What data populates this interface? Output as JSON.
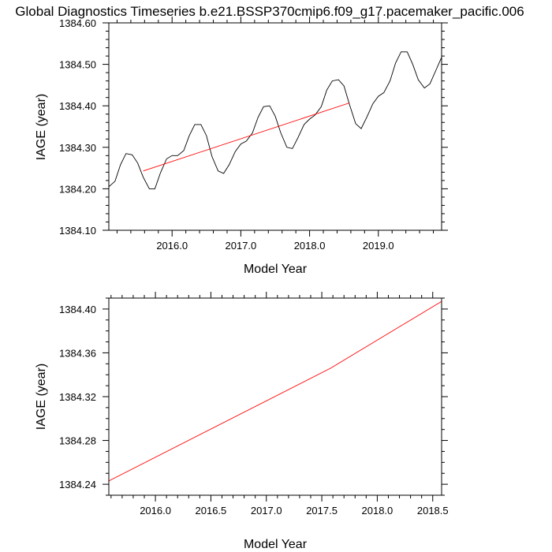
{
  "title": "Global Diagnostics Timeseries b.e21.BSSP370cmip6.f09_g17.pacemaker_pacific.006",
  "colors": {
    "data_line": "#000000",
    "trend_line": "#ff0000",
    "axes": "#000000"
  },
  "chart_data": [
    {
      "type": "line",
      "xlabel": "Model Year",
      "ylabel": "IAGE (year)",
      "xlim": [
        2015.08,
        2019.92
      ],
      "ylim": [
        1384.1,
        1384.6
      ],
      "x_ticks": [
        2016.0,
        2017.0,
        2018.0,
        2019.0
      ],
      "x_tick_labels": [
        "2016.0",
        "2017.0",
        "2018.0",
        "2019.0"
      ],
      "y_ticks": [
        1384.1,
        1384.2,
        1384.3,
        1384.4,
        1384.5,
        1384.6
      ],
      "y_tick_labels": [
        "1384.10",
        "1384.20",
        "1384.30",
        "1384.40",
        "1384.50",
        "1384.60"
      ],
      "series": [
        {
          "color": "#000000",
          "x": [
            2015.08,
            2015.17,
            2015.25,
            2015.33,
            2015.42,
            2015.5,
            2015.58,
            2015.67,
            2015.75,
            2015.83,
            2015.92,
            2016.0,
            2016.08,
            2016.17,
            2016.25,
            2016.33,
            2016.42,
            2016.5,
            2016.58,
            2016.67,
            2016.75,
            2016.83,
            2016.92,
            2017.0,
            2017.08,
            2017.17,
            2017.25,
            2017.33,
            2017.42,
            2017.5,
            2017.58,
            2017.67,
            2017.75,
            2017.83,
            2017.92,
            2018.0,
            2018.08,
            2018.17,
            2018.25,
            2018.33,
            2018.42,
            2018.5,
            2018.58,
            2018.67,
            2018.75,
            2018.83,
            2018.92,
            2019.0,
            2019.08,
            2019.17,
            2019.25,
            2019.33,
            2019.42,
            2019.5,
            2019.58,
            2019.67,
            2019.75,
            2019.83,
            2019.92
          ],
          "y": [
            1384.205,
            1384.218,
            1384.258,
            1384.285,
            1384.282,
            1384.262,
            1384.228,
            1384.2,
            1384.2,
            1384.238,
            1384.272,
            1384.28,
            1384.28,
            1384.292,
            1384.328,
            1384.355,
            1384.355,
            1384.328,
            1384.278,
            1384.243,
            1384.237,
            1384.258,
            1384.29,
            1384.308,
            1384.315,
            1384.335,
            1384.372,
            1384.398,
            1384.4,
            1384.375,
            1384.335,
            1384.3,
            1384.297,
            1384.323,
            1384.355,
            1384.368,
            1384.378,
            1384.398,
            1384.438,
            1384.46,
            1384.463,
            1384.448,
            1384.403,
            1384.357,
            1384.345,
            1384.372,
            1384.405,
            1384.423,
            1384.432,
            1384.46,
            1384.503,
            1384.53,
            1384.53,
            1384.5,
            1384.463,
            1384.443,
            1384.453,
            1384.483,
            1384.517
          ]
        },
        {
          "color": "#ff0000",
          "x": [
            2015.58,
            2018.58
          ],
          "y": [
            1384.243,
            1384.407
          ]
        }
      ]
    },
    {
      "type": "line",
      "xlabel": "Model Year",
      "ylabel": "IAGE (year)",
      "xlim": [
        2015.58,
        2018.58
      ],
      "ylim": [
        1384.23,
        1384.41
      ],
      "x_ticks": [
        2016.0,
        2016.5,
        2017.0,
        2017.5,
        2018.0,
        2018.5
      ],
      "x_tick_labels": [
        "2016.0",
        "2016.5",
        "2017.0",
        "2017.5",
        "2018.0",
        "2018.5"
      ],
      "y_ticks": [
        1384.24,
        1384.28,
        1384.32,
        1384.36,
        1384.4
      ],
      "y_tick_labels": [
        "1384.24",
        "1384.28",
        "1384.32",
        "1384.36",
        "1384.40"
      ],
      "series": [
        {
          "color": "#ff0000",
          "x": [
            2015.58,
            2017.58,
            2018.58
          ],
          "y": [
            1384.243,
            1384.346,
            1384.407
          ]
        }
      ]
    }
  ]
}
